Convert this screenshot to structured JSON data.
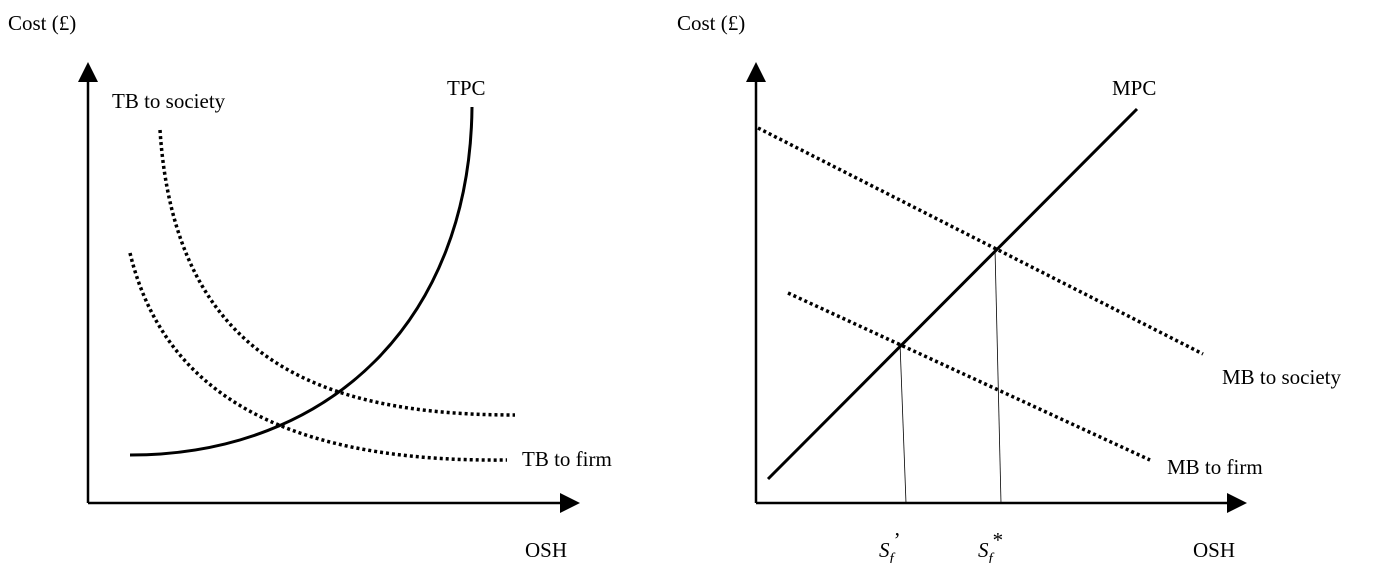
{
  "left_diagram": {
    "y_axis_label": "Cost (£)",
    "x_axis_label": "OSH",
    "curves": {
      "tpc": "TPC",
      "tb_society": "TB to society",
      "tb_firm": "TB to firm"
    }
  },
  "right_diagram": {
    "y_axis_label": "Cost (£)",
    "x_axis_label": "OSH",
    "curves": {
      "mpc": "MPC",
      "mb_society": "MB to society",
      "mb_firm": "MB to firm"
    },
    "markers": {
      "s_prime": {
        "base": "S",
        "sub": "f",
        "sup": "’"
      },
      "s_star": {
        "base": "S",
        "sub": "f",
        "sup": "*"
      }
    }
  },
  "colors": {
    "ink": "#000000",
    "background": "#ffffff"
  }
}
